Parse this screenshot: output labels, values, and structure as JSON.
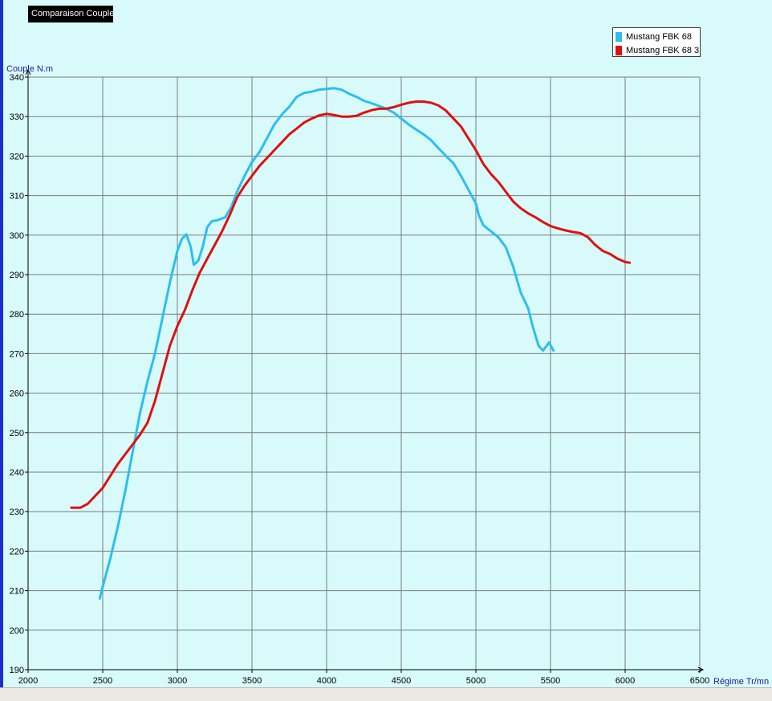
{
  "window": {
    "title": "Comparaison Couple"
  },
  "colors": {
    "background": "#d8fafa",
    "grid": "#7a7a7a",
    "axis_label": "#2020a0"
  },
  "chart_data": {
    "type": "line",
    "title": "Comparaison Couple",
    "xlabel": "Régime Tr/mn",
    "ylabel": "Couple N.m",
    "xlim": [
      2000,
      6500
    ],
    "ylim": [
      190,
      340
    ],
    "xticks": [
      2000,
      2500,
      3000,
      3500,
      4000,
      4500,
      5000,
      5500,
      6000,
      6500
    ],
    "yticks": [
      190,
      200,
      210,
      220,
      230,
      240,
      250,
      260,
      270,
      280,
      290,
      300,
      310,
      320,
      330,
      340
    ],
    "grid": true,
    "legend_position": "top-right",
    "series": [
      {
        "name": "Mustang FBK 68",
        "color": "#2cbef0",
        "points": [
          [
            2480,
            208
          ],
          [
            2500,
            211
          ],
          [
            2550,
            218
          ],
          [
            2600,
            226
          ],
          [
            2650,
            235
          ],
          [
            2700,
            245
          ],
          [
            2750,
            255
          ],
          [
            2800,
            263
          ],
          [
            2850,
            270
          ],
          [
            2900,
            279
          ],
          [
            2950,
            288
          ],
          [
            3000,
            296
          ],
          [
            3030,
            299
          ],
          [
            3060,
            300.2
          ],
          [
            3090,
            297
          ],
          [
            3110,
            292.5
          ],
          [
            3140,
            293.5
          ],
          [
            3170,
            297
          ],
          [
            3200,
            302
          ],
          [
            3230,
            303.5
          ],
          [
            3270,
            303.8
          ],
          [
            3320,
            304.5
          ],
          [
            3360,
            307
          ],
          [
            3400,
            311
          ],
          [
            3450,
            315
          ],
          [
            3500,
            318.5
          ],
          [
            3550,
            321
          ],
          [
            3600,
            324.5
          ],
          [
            3650,
            328
          ],
          [
            3700,
            330.5
          ],
          [
            3750,
            332.5
          ],
          [
            3800,
            335
          ],
          [
            3850,
            336
          ],
          [
            3900,
            336.3
          ],
          [
            3950,
            336.8
          ],
          [
            4000,
            337
          ],
          [
            4050,
            337.2
          ],
          [
            4100,
            336.8
          ],
          [
            4150,
            335.8
          ],
          [
            4200,
            335
          ],
          [
            4250,
            334
          ],
          [
            4300,
            333.4
          ],
          [
            4350,
            332.7
          ],
          [
            4400,
            332
          ],
          [
            4450,
            331
          ],
          [
            4500,
            329.5
          ],
          [
            4550,
            328
          ],
          [
            4600,
            326.7
          ],
          [
            4650,
            325.5
          ],
          [
            4700,
            324
          ],
          [
            4750,
            322
          ],
          [
            4800,
            320
          ],
          [
            4850,
            318.2
          ],
          [
            4900,
            315
          ],
          [
            4950,
            311.5
          ],
          [
            5000,
            308
          ],
          [
            5020,
            305
          ],
          [
            5050,
            302.5
          ],
          [
            5100,
            301
          ],
          [
            5150,
            299.5
          ],
          [
            5200,
            297
          ],
          [
            5250,
            292
          ],
          [
            5300,
            285.5
          ],
          [
            5350,
            281.5
          ],
          [
            5380,
            277
          ],
          [
            5420,
            272
          ],
          [
            5450,
            270.8
          ],
          [
            5490,
            272.8
          ],
          [
            5520,
            270.8
          ]
        ]
      },
      {
        "name": "Mustang FBK 68 3",
        "color": "#e01010",
        "points": [
          [
            2290,
            231
          ],
          [
            2350,
            231
          ],
          [
            2400,
            232
          ],
          [
            2450,
            234
          ],
          [
            2500,
            236
          ],
          [
            2550,
            239
          ],
          [
            2600,
            242
          ],
          [
            2650,
            244.5
          ],
          [
            2700,
            247
          ],
          [
            2750,
            249.5
          ],
          [
            2800,
            252.5
          ],
          [
            2850,
            258
          ],
          [
            2900,
            265
          ],
          [
            2950,
            272
          ],
          [
            3000,
            277
          ],
          [
            3050,
            281
          ],
          [
            3100,
            286
          ],
          [
            3150,
            290.5
          ],
          [
            3200,
            294
          ],
          [
            3250,
            297.5
          ],
          [
            3300,
            301
          ],
          [
            3350,
            305
          ],
          [
            3400,
            309.5
          ],
          [
            3450,
            312.5
          ],
          [
            3500,
            315
          ],
          [
            3550,
            317.5
          ],
          [
            3600,
            319.5
          ],
          [
            3650,
            321.5
          ],
          [
            3700,
            323.5
          ],
          [
            3750,
            325.5
          ],
          [
            3800,
            327
          ],
          [
            3850,
            328.5
          ],
          [
            3900,
            329.5
          ],
          [
            3950,
            330.3
          ],
          [
            4000,
            330.7
          ],
          [
            4050,
            330.4
          ],
          [
            4100,
            330
          ],
          [
            4150,
            330
          ],
          [
            4200,
            330.2
          ],
          [
            4250,
            331
          ],
          [
            4300,
            331.6
          ],
          [
            4350,
            332
          ],
          [
            4400,
            332
          ],
          [
            4450,
            332.4
          ],
          [
            4500,
            333
          ],
          [
            4550,
            333.5
          ],
          [
            4600,
            333.8
          ],
          [
            4650,
            333.8
          ],
          [
            4700,
            333.5
          ],
          [
            4750,
            332.8
          ],
          [
            4800,
            331.5
          ],
          [
            4850,
            329.5
          ],
          [
            4900,
            327.5
          ],
          [
            4950,
            324.5
          ],
          [
            5000,
            321.5
          ],
          [
            5050,
            318
          ],
          [
            5100,
            315.5
          ],
          [
            5150,
            313.5
          ],
          [
            5200,
            311
          ],
          [
            5250,
            308.5
          ],
          [
            5300,
            306.8
          ],
          [
            5350,
            305.5
          ],
          [
            5400,
            304.5
          ],
          [
            5450,
            303.3
          ],
          [
            5500,
            302.3
          ],
          [
            5550,
            301.7
          ],
          [
            5600,
            301.2
          ],
          [
            5650,
            300.8
          ],
          [
            5700,
            300.5
          ],
          [
            5750,
            299.5
          ],
          [
            5800,
            297.5
          ],
          [
            5850,
            296
          ],
          [
            5900,
            295.2
          ],
          [
            5950,
            294
          ],
          [
            6000,
            293.2
          ],
          [
            6030,
            293
          ]
        ]
      }
    ]
  }
}
